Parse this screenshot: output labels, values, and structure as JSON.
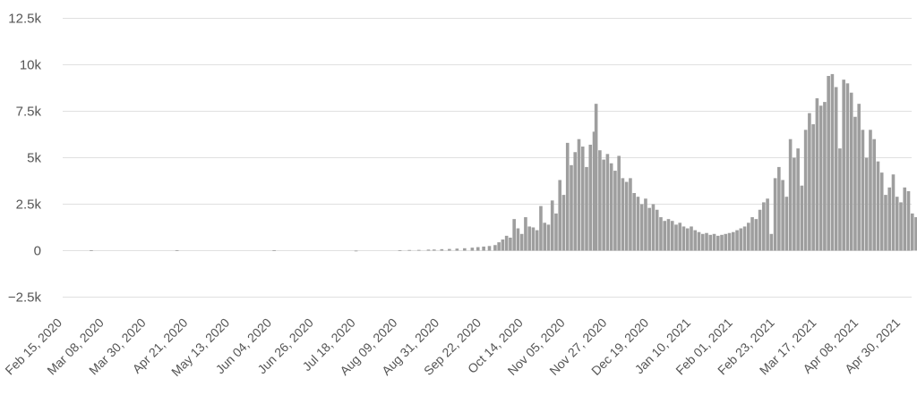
{
  "chart_data": {
    "type": "bar",
    "title": "",
    "xlabel": "",
    "ylabel": "",
    "ylim": [
      -2500,
      12500
    ],
    "grid": true,
    "bar_color": "#9e9e9e",
    "grid_color": "#e0e0e0",
    "y_ticks": [
      "12.5k",
      "10k",
      "7.5k",
      "5k",
      "2.5k",
      "0",
      "−2.5k"
    ],
    "y_tick_values": [
      12500,
      10000,
      7500,
      5000,
      2500,
      0,
      -2500
    ],
    "x_ticks": [
      "Feb 15, 2020",
      "Mar 08, 2020",
      "Mar 30, 2020",
      "Apr 21, 2020",
      "May 13, 2020",
      "Jun 04, 2020",
      "Jun 26, 2020",
      "Jul 18, 2020",
      "Aug 09, 2020",
      "Aug 31, 2020",
      "Sep 22, 2020",
      "Oct 14, 2020",
      "Nov 05, 2020",
      "Nov 27, 2020",
      "Dec 19, 2020",
      "Jan 10, 2021",
      "Feb 01, 2021",
      "Feb 23, 2021",
      "Mar 17, 2021",
      "Apr 08, 2021",
      "Apr 30, 2021"
    ],
    "x_tick_dates": [
      "2020-02-15",
      "2020-03-08",
      "2020-03-30",
      "2020-04-21",
      "2020-05-13",
      "2020-06-04",
      "2020-06-26",
      "2020-07-18",
      "2020-08-09",
      "2020-08-31",
      "2020-09-22",
      "2020-10-14",
      "2020-11-05",
      "2020-11-27",
      "2020-12-19",
      "2021-01-10",
      "2021-02-01",
      "2021-02-23",
      "2021-03-17",
      "2021-04-08",
      "2021-04-30"
    ],
    "series": [
      {
        "values": [
          {
            "x": "2020-03-01",
            "y": 20
          },
          {
            "x": "2020-04-15",
            "y": 15
          },
          {
            "x": "2020-06-05",
            "y": 25
          },
          {
            "x": "2020-07-18",
            "y": -30
          },
          {
            "x": "2020-08-10",
            "y": 20
          },
          {
            "x": "2020-08-15",
            "y": 35
          },
          {
            "x": "2020-08-20",
            "y": 40
          },
          {
            "x": "2020-08-25",
            "y": 55
          },
          {
            "x": "2020-08-28",
            "y": 60
          },
          {
            "x": "2020-09-01",
            "y": 80
          },
          {
            "x": "2020-09-05",
            "y": 90
          },
          {
            "x": "2020-09-09",
            "y": 110
          },
          {
            "x": "2020-09-13",
            "y": 130
          },
          {
            "x": "2020-09-17",
            "y": 160
          },
          {
            "x": "2020-09-20",
            "y": 190
          },
          {
            "x": "2020-09-23",
            "y": 220
          },
          {
            "x": "2020-09-26",
            "y": 250
          },
          {
            "x": "2020-09-29",
            "y": 300
          },
          {
            "x": "2020-10-01",
            "y": 450
          },
          {
            "x": "2020-10-03",
            "y": 600
          },
          {
            "x": "2020-10-05",
            "y": 800
          },
          {
            "x": "2020-10-07",
            "y": 700
          },
          {
            "x": "2020-10-09",
            "y": 1700
          },
          {
            "x": "2020-10-11",
            "y": 1200
          },
          {
            "x": "2020-10-13",
            "y": 900
          },
          {
            "x": "2020-10-15",
            "y": 1800
          },
          {
            "x": "2020-10-17",
            "y": 1300
          },
          {
            "x": "2020-10-19",
            "y": 1250
          },
          {
            "x": "2020-10-21",
            "y": 1100
          },
          {
            "x": "2020-10-23",
            "y": 2400
          },
          {
            "x": "2020-10-25",
            "y": 1500
          },
          {
            "x": "2020-10-27",
            "y": 1400
          },
          {
            "x": "2020-10-29",
            "y": 2700
          },
          {
            "x": "2020-10-31",
            "y": 2000
          },
          {
            "x": "2020-11-02",
            "y": 3800
          },
          {
            "x": "2020-11-04",
            "y": 3000
          },
          {
            "x": "2020-11-06",
            "y": 5800
          },
          {
            "x": "2020-11-08",
            "y": 4600
          },
          {
            "x": "2020-11-10",
            "y": 5300
          },
          {
            "x": "2020-11-12",
            "y": 6000
          },
          {
            "x": "2020-11-14",
            "y": 5600
          },
          {
            "x": "2020-11-16",
            "y": 4500
          },
          {
            "x": "2020-11-18",
            "y": 5700
          },
          {
            "x": "2020-11-20",
            "y": 6400
          },
          {
            "x": "2020-11-21",
            "y": 7900
          },
          {
            "x": "2020-11-23",
            "y": 5400
          },
          {
            "x": "2020-11-25",
            "y": 4900
          },
          {
            "x": "2020-11-27",
            "y": 5200
          },
          {
            "x": "2020-11-29",
            "y": 4700
          },
          {
            "x": "2020-12-01",
            "y": 4300
          },
          {
            "x": "2020-12-03",
            "y": 5100
          },
          {
            "x": "2020-12-05",
            "y": 3900
          },
          {
            "x": "2020-12-07",
            "y": 3700
          },
          {
            "x": "2020-12-09",
            "y": 3900
          },
          {
            "x": "2020-12-11",
            "y": 3100
          },
          {
            "x": "2020-12-13",
            "y": 2900
          },
          {
            "x": "2020-12-15",
            "y": 2500
          },
          {
            "x": "2020-12-17",
            "y": 2800
          },
          {
            "x": "2020-12-19",
            "y": 2300
          },
          {
            "x": "2020-12-21",
            "y": 2500
          },
          {
            "x": "2020-12-23",
            "y": 2200
          },
          {
            "x": "2020-12-25",
            "y": 1800
          },
          {
            "x": "2020-12-27",
            "y": 1600
          },
          {
            "x": "2020-12-29",
            "y": 1700
          },
          {
            "x": "2020-12-31",
            "y": 1600
          },
          {
            "x": "2021-01-02",
            "y": 1400
          },
          {
            "x": "2021-01-04",
            "y": 1500
          },
          {
            "x": "2021-01-06",
            "y": 1300
          },
          {
            "x": "2021-01-08",
            "y": 1200
          },
          {
            "x": "2021-01-10",
            "y": 1300
          },
          {
            "x": "2021-01-12",
            "y": 1100
          },
          {
            "x": "2021-01-14",
            "y": 1000
          },
          {
            "x": "2021-01-16",
            "y": 900
          },
          {
            "x": "2021-01-18",
            "y": 950
          },
          {
            "x": "2021-01-20",
            "y": 850
          },
          {
            "x": "2021-01-22",
            "y": 900
          },
          {
            "x": "2021-01-24",
            "y": 800
          },
          {
            "x": "2021-01-26",
            "y": 850
          },
          {
            "x": "2021-01-28",
            "y": 900
          },
          {
            "x": "2021-01-30",
            "y": 950
          },
          {
            "x": "2021-02-01",
            "y": 1000
          },
          {
            "x": "2021-02-03",
            "y": 1100
          },
          {
            "x": "2021-02-05",
            "y": 1200
          },
          {
            "x": "2021-02-07",
            "y": 1300
          },
          {
            "x": "2021-02-09",
            "y": 1500
          },
          {
            "x": "2021-02-11",
            "y": 1800
          },
          {
            "x": "2021-02-13",
            "y": 1700
          },
          {
            "x": "2021-02-15",
            "y": 2200
          },
          {
            "x": "2021-02-17",
            "y": 2600
          },
          {
            "x": "2021-02-19",
            "y": 2800
          },
          {
            "x": "2021-02-21",
            "y": 900
          },
          {
            "x": "2021-02-23",
            "y": 3900
          },
          {
            "x": "2021-02-25",
            "y": 4500
          },
          {
            "x": "2021-02-27",
            "y": 3800
          },
          {
            "x": "2021-03-01",
            "y": 2900
          },
          {
            "x": "2021-03-03",
            "y": 6000
          },
          {
            "x": "2021-03-05",
            "y": 5000
          },
          {
            "x": "2021-03-07",
            "y": 5500
          },
          {
            "x": "2021-03-09",
            "y": 3500
          },
          {
            "x": "2021-03-11",
            "y": 6500
          },
          {
            "x": "2021-03-13",
            "y": 7400
          },
          {
            "x": "2021-03-15",
            "y": 6800
          },
          {
            "x": "2021-03-17",
            "y": 8200
          },
          {
            "x": "2021-03-19",
            "y": 7800
          },
          {
            "x": "2021-03-21",
            "y": 8000
          },
          {
            "x": "2021-03-23",
            "y": 9400
          },
          {
            "x": "2021-03-25",
            "y": 9500
          },
          {
            "x": "2021-03-27",
            "y": 8800
          },
          {
            "x": "2021-03-29",
            "y": 5500
          },
          {
            "x": "2021-03-31",
            "y": 9200
          },
          {
            "x": "2021-04-02",
            "y": 9000
          },
          {
            "x": "2021-04-04",
            "y": 8500
          },
          {
            "x": "2021-04-06",
            "y": 7200
          },
          {
            "x": "2021-04-08",
            "y": 7900
          },
          {
            "x": "2021-04-10",
            "y": 6500
          },
          {
            "x": "2021-04-12",
            "y": 5000
          },
          {
            "x": "2021-04-14",
            "y": 6500
          },
          {
            "x": "2021-04-16",
            "y": 6000
          },
          {
            "x": "2021-04-18",
            "y": 4800
          },
          {
            "x": "2021-04-20",
            "y": 4200
          },
          {
            "x": "2021-04-22",
            "y": 3000
          },
          {
            "x": "2021-04-24",
            "y": 3400
          },
          {
            "x": "2021-04-26",
            "y": 4100
          },
          {
            "x": "2021-04-28",
            "y": 2900
          },
          {
            "x": "2021-04-30",
            "y": 2600
          },
          {
            "x": "2021-05-02",
            "y": 3400
          },
          {
            "x": "2021-05-04",
            "y": 3200
          },
          {
            "x": "2021-05-06",
            "y": 2000
          },
          {
            "x": "2021-05-08",
            "y": 1800
          },
          {
            "x": "2021-05-10",
            "y": 2200
          },
          {
            "x": "2021-05-12",
            "y": 1900
          },
          {
            "x": "2021-05-14",
            "y": 1300
          },
          {
            "x": "2021-05-16",
            "y": 800
          },
          {
            "x": "2021-05-18",
            "y": 1400
          },
          {
            "x": "2021-05-20",
            "y": 1500
          },
          {
            "x": "2021-05-22",
            "y": 1000
          }
        ]
      }
    ]
  }
}
